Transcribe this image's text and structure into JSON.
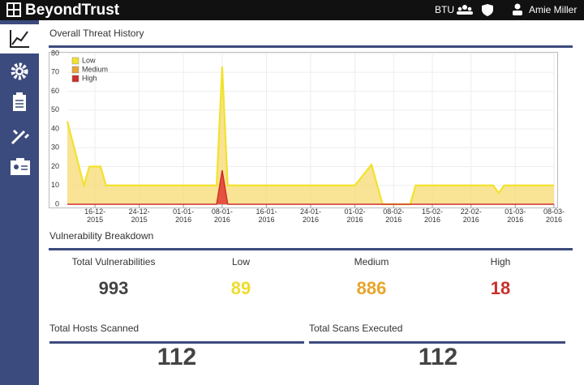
{
  "header": {
    "brand": "BeyondTrust",
    "org": "BTU",
    "user": "Amie Miller"
  },
  "chart_data": {
    "type": "area",
    "title": "Overall Threat History",
    "x": [
      "2015-12-11",
      "2015-12-14",
      "2015-12-15",
      "2015-12-17",
      "2015-12-18",
      "2016-01-07",
      "2016-01-08",
      "2016-01-09",
      "2016-02-01",
      "2016-02-04",
      "2016-02-06",
      "2016-02-11",
      "2016-02-12",
      "2016-02-26",
      "2016-02-27",
      "2016-02-28",
      "2016-03-08"
    ],
    "xlim": [
      "2015-12-11",
      "2016-03-08"
    ],
    "xticks": [
      {
        "value": "2015-12-16",
        "label": "16-12-2015"
      },
      {
        "value": "2015-12-24",
        "label": "24-12-2015"
      },
      {
        "value": "2016-01-01",
        "label": "01-01-2016"
      },
      {
        "value": "2016-01-08",
        "label": "08-01-2016"
      },
      {
        "value": "2016-01-16",
        "label": "16-01-2016"
      },
      {
        "value": "2016-01-24",
        "label": "24-01-2016"
      },
      {
        "value": "2016-02-01",
        "label": "01-02-2016"
      },
      {
        "value": "2016-02-08",
        "label": "08-02-2016"
      },
      {
        "value": "2016-02-15",
        "label": "15-02-2016"
      },
      {
        "value": "2016-02-22",
        "label": "22-02-2016"
      },
      {
        "value": "2016-03-01",
        "label": "01-03-2016"
      },
      {
        "value": "2016-03-08",
        "label": "08-03-2016"
      }
    ],
    "ylim": [
      0,
      80
    ],
    "yticks": [
      0,
      10,
      20,
      30,
      40,
      50,
      60,
      70,
      80
    ],
    "grid": true,
    "legend": "upper-left",
    "series": [
      {
        "name": "Low",
        "color": "#f2e22c",
        "values": [
          44,
          10,
          20,
          20,
          10,
          10,
          73,
          10,
          10,
          21,
          0,
          0,
          10,
          10,
          6,
          10,
          10
        ]
      },
      {
        "name": "Medium",
        "color": "#e9a636",
        "values": [
          44,
          10,
          20,
          20,
          10,
          10,
          73,
          10,
          10,
          21,
          0,
          0,
          10,
          10,
          6,
          10,
          10
        ]
      },
      {
        "name": "High",
        "color": "#cf2f2a",
        "values": [
          0,
          0,
          0,
          0,
          0,
          0,
          18,
          0,
          0,
          0,
          0,
          0,
          0,
          0,
          0,
          0,
          0
        ]
      }
    ]
  },
  "breakdown": {
    "title": "Vulnerability Breakdown",
    "items": [
      {
        "label": "Total Vulnerabilities",
        "value": 993,
        "color": "#444444"
      },
      {
        "label": "Low",
        "value": 89,
        "color": "#efdc2e"
      },
      {
        "label": "Medium",
        "value": 886,
        "color": "#e6a52b"
      },
      {
        "label": "High",
        "value": 18,
        "color": "#c9302a"
      }
    ]
  },
  "totals": [
    {
      "label": "Total Hosts Scanned",
      "value": 112
    },
    {
      "label": "Total Scans Executed",
      "value": 112
    }
  ]
}
